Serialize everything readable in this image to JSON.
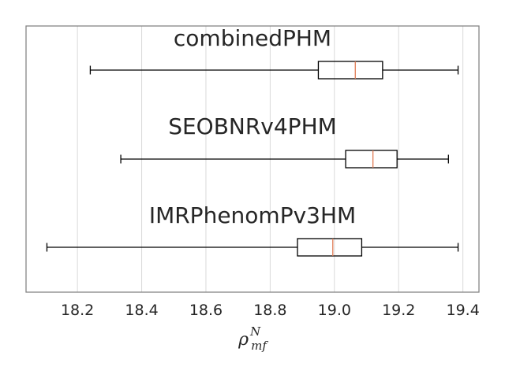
{
  "chart_data": {
    "type": "boxplot",
    "orientation": "horizontal",
    "xlabel": {
      "base": "ρ",
      "superscript": "N",
      "subscript": "mf"
    },
    "xlim": [
      18.04,
      19.45
    ],
    "xticks": [
      18.2,
      18.4,
      18.6,
      18.8,
      19.0,
      19.2,
      19.4
    ],
    "xtick_labels": [
      "18.2",
      "18.4",
      "18.6",
      "18.8",
      "19.0",
      "19.2",
      "19.4"
    ],
    "grid": "vertical",
    "colors": {
      "box": "#000000",
      "median": "#e07b54",
      "grid": "#d9d9d9",
      "frame": "#808080",
      "text": "#262626"
    },
    "series": [
      {
        "name": "combinedPHM",
        "whisker_low": 18.24,
        "q1": 18.95,
        "median": 19.065,
        "q3": 19.15,
        "whisker_high": 19.385
      },
      {
        "name": "SEOBNRv4PHM",
        "whisker_low": 18.335,
        "q1": 19.035,
        "median": 19.12,
        "q3": 19.195,
        "whisker_high": 19.355
      },
      {
        "name": "IMRPhenomPv3HM",
        "whisker_low": 18.105,
        "q1": 18.885,
        "median": 18.995,
        "q3": 19.085,
        "whisker_high": 19.385
      }
    ]
  }
}
